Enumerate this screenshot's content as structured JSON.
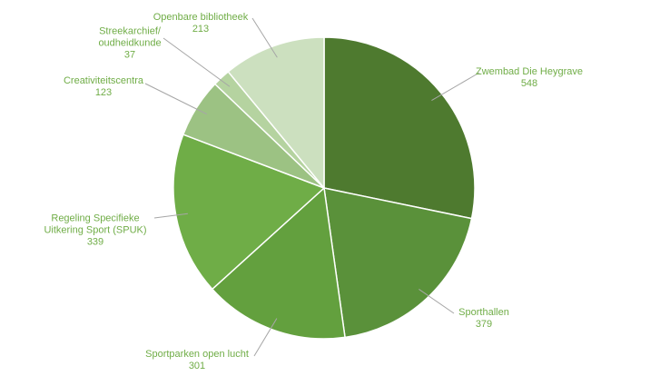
{
  "chart_data": {
    "type": "pie",
    "categories": [
      "Zwembad Die Heygrave",
      "Sporthallen",
      "Sportparken open lucht",
      "Regeling Specifieke Uitkering Sport (SPUK)",
      "Creativiteitscentra",
      "Streekarchief/ oudheidkunde",
      "Openbare bibliotheek"
    ],
    "values": [
      548,
      379,
      301,
      339,
      123,
      37,
      213
    ],
    "colors": [
      "#4e7a2f",
      "#5a913a",
      "#63a03e",
      "#6fad47",
      "#9cc283",
      "#b5d3a0",
      "#cce0bf"
    ]
  }
}
